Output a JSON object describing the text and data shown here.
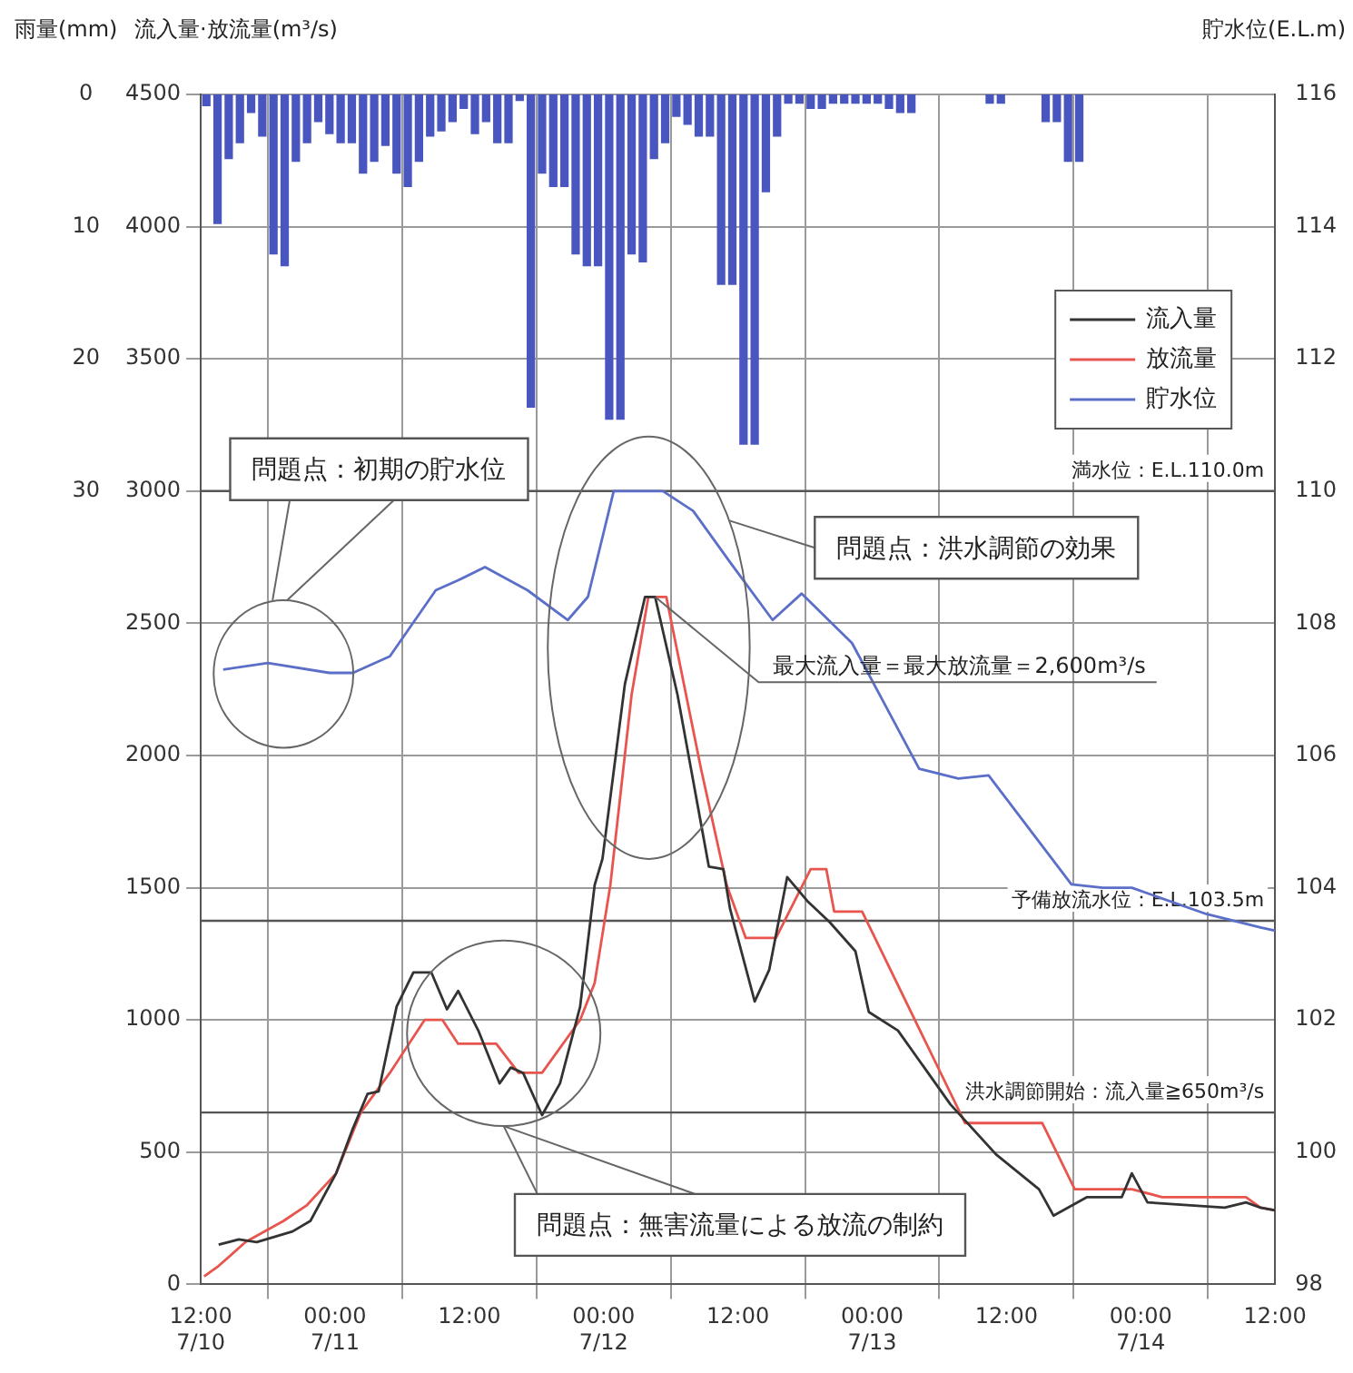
{
  "chart_data": {
    "type": "line",
    "ylabel": "流入量·放流量(m³/s)",
    "y2label": "貯水位(E.L.m)",
    "y3label": "雨量(mm)",
    "xlim": [
      "--07-10T12:00",
      "--07-14T12:00"
    ],
    "xticks": [
      {
        "value": "--07-10T12:00",
        "label": "12:00 7/10"
      },
      {
        "value": "--07-11T00:00",
        "label": "00:00 7/11"
      },
      {
        "value": "--07-11T12:00",
        "label": "12:00"
      },
      {
        "value": "--07-12T00:00",
        "label": "00:00 7/12"
      },
      {
        "value": "--07-12T12:00",
        "label": "12:00"
      },
      {
        "value": "--07-13T00:00",
        "label": "00:00 7/13"
      },
      {
        "value": "--07-13T12:00",
        "label": "12:00"
      },
      {
        "value": "--07-14T00:00",
        "label": "00:00 7/14"
      },
      {
        "value": "--07-14T12:00",
        "label": "12:00"
      }
    ],
    "ylim": [
      0,
      4500
    ],
    "yticks": [
      0,
      500,
      1000,
      1500,
      2000,
      2500,
      3000,
      3500,
      4000,
      4500
    ],
    "y2lim": [
      98,
      116
    ],
    "y2ticks": [
      98,
      100,
      102,
      104,
      106,
      108,
      110,
      112,
      114,
      116
    ],
    "y3lim": [
      90,
      0
    ],
    "y3ticks": [
      0,
      10,
      20,
      30
    ],
    "grid": true,
    "legend": "top right",
    "marker": "none",
    "line_style": "solid",
    "series": [
      {
        "type": "bar",
        "axis": "y3",
        "color": "#4a56c0",
        "x": [
          "--07-10T12:30",
          "--07-10T13:30",
          "--07-10T14:30",
          "--07-10T15:30",
          "--07-10T16:30",
          "--07-10T17:30",
          "--07-10T18:30",
          "--07-10T19:30",
          "--07-10T20:30",
          "--07-10T21:30",
          "--07-10T22:30",
          "--07-10T23:30",
          "--07-11T00:30",
          "--07-11T01:30",
          "--07-11T02:30",
          "--07-11T03:30",
          "--07-11T04:30",
          "--07-11T05:30",
          "--07-11T06:30",
          "--07-11T07:30",
          "--07-11T08:30",
          "--07-11T09:30",
          "--07-11T10:30",
          "--07-11T11:30",
          "--07-11T12:30",
          "--07-11T13:30",
          "--07-11T14:30",
          "--07-11T15:30",
          "--07-11T16:30",
          "--07-11T17:30",
          "--07-11T18:30",
          "--07-11T19:30",
          "--07-11T20:30",
          "--07-11T21:30",
          "--07-11T22:30",
          "--07-11T23:30",
          "--07-12T00:30",
          "--07-12T01:30",
          "--07-12T02:30",
          "--07-12T03:30",
          "--07-12T04:30",
          "--07-12T05:30",
          "--07-12T06:30",
          "--07-12T07:30",
          "--07-12T08:30",
          "--07-12T09:30",
          "--07-12T10:30",
          "--07-12T11:30",
          "--07-12T12:30",
          "--07-12T13:30",
          "--07-12T14:30",
          "--07-12T15:30",
          "--07-12T16:30",
          "--07-12T17:30",
          "--07-12T18:30",
          "--07-12T19:30",
          "--07-12T20:30",
          "--07-12T21:30",
          "--07-12T22:30",
          "--07-12T23:30",
          "--07-13T00:30",
          "--07-13T01:30",
          "--07-13T02:30",
          "--07-13T03:30",
          "--07-13T04:30",
          "--07-13T05:30",
          "--07-13T06:30",
          "--07-13T07:30",
          "--07-13T08:30",
          "--07-13T09:30",
          "--07-13T10:30",
          "--07-13T11:30",
          "--07-13T12:30",
          "--07-13T13:30",
          "--07-13T14:30",
          "--07-13T15:30",
          "--07-13T16:30",
          "--07-13T17:30",
          "--07-13T18:30"
        ],
        "values": [
          0.9,
          9.8,
          4.9,
          3.7,
          1.4,
          3.2,
          12.1,
          13,
          5.1,
          3.7,
          2.1,
          3,
          3.7,
          3.7,
          6,
          5.1,
          3.9,
          6,
          7,
          5.1,
          3.2,
          2.8,
          2.1,
          1.1,
          3,
          2.1,
          3.7,
          3.7,
          0.5,
          23.7,
          6,
          7,
          7,
          12.1,
          13,
          13,
          24.6,
          24.6,
          12.1,
          12.7,
          4.9,
          3.7,
          1.7,
          2.3,
          3.2,
          3.2,
          14.4,
          14.4,
          26.5,
          26.5,
          7.4,
          3.2,
          0.7,
          0.7,
          1.1,
          1.1,
          0.7,
          0.7,
          0.7,
          0.7,
          0.7,
          1.1,
          1.4,
          1.4,
          0,
          0,
          0,
          0,
          0,
          0,
          0.7,
          0.7,
          0,
          0,
          0,
          2.1,
          2.1,
          5.1,
          5.1
        ]
      },
      {
        "name": "流入量",
        "color": "#333333",
        "x": [
          "--07-10T13:36",
          "--07-10T15:24",
          "--07-10T17:00",
          "--07-10T20:12",
          "--07-10T21:48",
          "--07-11T00:06",
          "--07-11T01:36",
          "--07-11T02:54",
          "--07-11T03:54",
          "--07-11T05:30",
          "--07-11T07:00",
          "--07-11T08:36",
          "--07-11T10:00",
          "--07-11T11:00",
          "--07-11T12:48",
          "--07-11T14:42",
          "--07-11T15:42",
          "--07-11T16:48",
          "--07-11T18:30",
          "--07-11T20:06",
          "--07-11T21:54",
          "--07-11T23:12",
          "--07-11T23:54",
          "--07-12T01:54",
          "--07-12T03:42",
          "--07-12T04:36",
          "--07-12T06:36",
          "--07-12T09:24",
          "--07-12T10:42",
          "--07-12T11:18",
          "--07-12T13:30",
          "--07-12T14:48",
          "--07-12T16:24",
          "--07-12T18:12",
          "--07-12T20:12",
          "--07-12T22:30",
          "--07-12T23:42",
          "--07-13T02:18",
          "--07-13T07:00",
          "--07-13T11:06",
          "--07-13T14:54",
          "--07-13T16:12",
          "--07-13T19:12",
          "--07-13T22:18",
          "--07-13T23:12",
          "--07-14T00:36",
          "--07-14T07:30",
          "--07-14T09:24",
          "--07-14T10:42",
          "--07-14T12:00"
        ],
        "values": [
          150,
          170,
          160,
          200,
          240,
          420,
          590,
          720,
          730,
          1050,
          1180,
          1180,
          1040,
          1110,
          960,
          760,
          820,
          800,
          640,
          760,
          1050,
          1510,
          1610,
          2270,
          2600,
          2600,
          2230,
          1580,
          1570,
          1420,
          1070,
          1190,
          1540,
          1450,
          1370,
          1260,
          1030,
          960,
          680,
          490,
          360,
          260,
          330,
          330,
          420,
          310,
          290,
          310,
          290,
          280
        ]
      },
      {
        "name": "放流量",
        "color": "#e8554e",
        "x": [
          "--07-10T12:18",
          "--07-10T13:36",
          "--07-10T16:00",
          "--07-10T19:24",
          "--07-10T21:30",
          "--07-11T00:06",
          "--07-11T02:18",
          "--07-11T04:54",
          "--07-11T08:00",
          "--07-11T09:36",
          "--07-11T11:00",
          "--07-11T14:24",
          "--07-11T16:24",
          "--07-11T18:30",
          "--07-11T21:54",
          "--07-11T23:12",
          "--07-12T00:36",
          "--07-12T02:30",
          "--07-12T04:00",
          "--07-12T05:36",
          "--07-12T08:42",
          "--07-12T11:00",
          "--07-12T12:42",
          "--07-12T15:24",
          "--07-12T18:30",
          "--07-12T19:54",
          "--07-12T20:36",
          "--07-12T23:06",
          "--07-13T08:18",
          "--07-13T15:12",
          "--07-13T18:06",
          "--07-13T23:12",
          "--07-14T01:54",
          "--07-14T09:24",
          "--07-14T10:42",
          "--07-14T12:00"
        ],
        "values": [
          30,
          70,
          160,
          240,
          300,
          420,
          650,
          800,
          1000,
          1000,
          910,
          910,
          800,
          800,
          1000,
          1140,
          1510,
          2230,
          2600,
          2600,
          1950,
          1510,
          1310,
          1310,
          1570,
          1570,
          1410,
          1410,
          610,
          610,
          360,
          360,
          330,
          330,
          290,
          280
        ]
      },
      {
        "name": "貯水位",
        "axis": "y2",
        "color": "#5b6fc8",
        "x": [
          "--07-10T14:00",
          "--07-10T18:00",
          "--07-10T23:30",
          "--07-11T01:36",
          "--07-11T04:54",
          "--07-11T09:00",
          "--07-11T11:00",
          "--07-11T13:24",
          "--07-11T17:12",
          "--07-11T20:48",
          "--07-11T22:36",
          "--07-12T00:54",
          "--07-12T05:18",
          "--07-12T08:00",
          "--07-12T11:24",
          "--07-12T15:06",
          "--07-12T17:42",
          "--07-12T22:12",
          "--07-13T04:12",
          "--07-13T07:42",
          "--07-13T10:24",
          "--07-13T17:48",
          "--07-13T20:36",
          "--07-13T23:12",
          "--07-14T05:54",
          "--07-14T10:42",
          "--07-14T12:00"
        ],
        "values": [
          107.3,
          107.4,
          107.25,
          107.25,
          107.5,
          108.5,
          108.65,
          108.85,
          108.5,
          108.05,
          108.4,
          110,
          110,
          109.7,
          108.9,
          108.05,
          108.45,
          107.7,
          105.8,
          105.65,
          105.7,
          104.05,
          104,
          104,
          103.6,
          103.4,
          103.35
        ]
      }
    ],
    "ref_lines": [
      {
        "axis": "y2",
        "value": 110,
        "label": "満水位：E.L.110.0m"
      },
      {
        "axis": "y2",
        "value": 103.5,
        "label": "予備放流水位：E.L.103.5m"
      },
      {
        "axis": "y",
        "value": 650,
        "label": "洪水調節開始：流入量≧650m³/s"
      }
    ],
    "annotations": [
      "問題点：初期の貯水位",
      "問題点：洪水調節の効果",
      "問題点：無害流量による放流の制約",
      {
        "text": "最大流入量＝最大放流量＝2,600m³/s",
        "x": "--07-12T04:36",
        "y": 2600
      }
    ]
  }
}
